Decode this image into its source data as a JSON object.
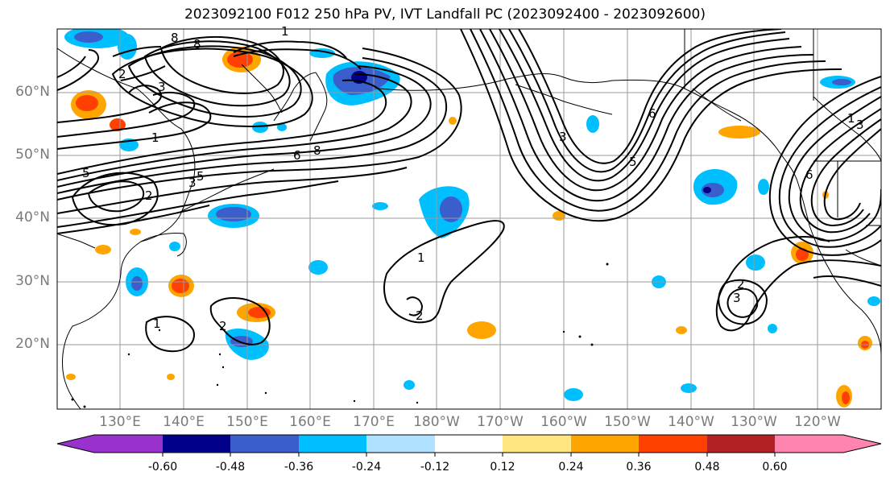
{
  "title": "2023092100 F012 250 hPa PV, IVT Landfall PC (2023092400 - 2023092600)",
  "lat_labels": [
    "60°N",
    "50°N",
    "40°N",
    "30°N",
    "20°N"
  ],
  "lon_labels": [
    "130°E",
    "140°E",
    "150°E",
    "160°E",
    "170°E",
    "180°W",
    "170°W",
    "160°W",
    "150°W",
    "140°W",
    "130°W",
    "120°W"
  ],
  "colorbar": {
    "colors": [
      "#9932cc",
      "#00008b",
      "#3a5fcd",
      "#00bfff",
      "#b0e2ff",
      "#ffffff",
      "#ffe680",
      "#ffa500",
      "#ff4000",
      "#b22222",
      "#ff85b0"
    ],
    "tick_labels": [
      "-0.60",
      "-0.48",
      "-0.36",
      "-0.24",
      "-0.12",
      "0.12",
      "0.24",
      "0.36",
      "0.48",
      "0.60"
    ]
  },
  "contour_labels": [
    "1",
    "2",
    "3",
    "5",
    "6",
    "8",
    "1",
    "2",
    "3",
    "1",
    "2",
    "3",
    "5",
    "6",
    "8",
    "1",
    "2",
    "3",
    "1",
    "2",
    "3",
    "5",
    "6",
    "8"
  ]
}
